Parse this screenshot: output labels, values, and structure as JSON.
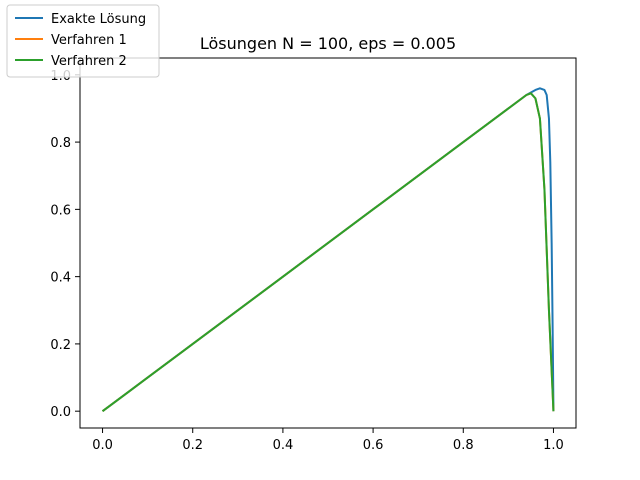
{
  "chart_data": {
    "type": "line",
    "title": "Lösungen N = 100, eps = 0.005",
    "xlabel": "",
    "ylabel": "",
    "xlim": [
      -0.05,
      1.05
    ],
    "ylim": [
      -0.05,
      1.05
    ],
    "xticks": [
      0.0,
      0.2,
      0.4,
      0.6,
      0.8,
      1.0
    ],
    "yticks": [
      0.0,
      0.2,
      0.4,
      0.6,
      0.8,
      1.0
    ],
    "xtick_labels": [
      "0.0",
      "0.2",
      "0.4",
      "0.6",
      "0.8",
      "1.0"
    ],
    "ytick_labels": [
      "0.0",
      "0.2",
      "0.4",
      "0.6",
      "0.8",
      "1.0"
    ],
    "grid": false,
    "legend_placement": "top-left",
    "series": [
      {
        "name": "Exakte Lösung",
        "color": "#1f77b4",
        "x": [
          0.0,
          0.2,
          0.4,
          0.6,
          0.8,
          0.9,
          0.94,
          0.96,
          0.97,
          0.98,
          0.985,
          0.99,
          0.993,
          0.996,
          0.998,
          1.0
        ],
        "y": [
          0.0,
          0.2,
          0.4,
          0.6,
          0.8,
          0.9,
          0.94,
          0.955,
          0.96,
          0.955,
          0.94,
          0.87,
          0.74,
          0.5,
          0.27,
          0.0
        ]
      },
      {
        "name": "Verfahren 1",
        "color": "#ff7f0e",
        "x": [
          0.0,
          0.2,
          0.4,
          0.6,
          0.8,
          0.9,
          0.94,
          0.95,
          0.96,
          0.97,
          0.98,
          0.99,
          1.0
        ],
        "y": [
          0.0,
          0.2,
          0.4,
          0.6,
          0.8,
          0.9,
          0.94,
          0.945,
          0.93,
          0.87,
          0.66,
          0.3,
          0.0
        ]
      },
      {
        "name": "Verfahren 2",
        "color": "#2ca02c",
        "x": [
          0.0,
          0.2,
          0.4,
          0.6,
          0.8,
          0.9,
          0.94,
          0.95,
          0.96,
          0.97,
          0.98,
          0.99,
          1.0
        ],
        "y": [
          0.0,
          0.2,
          0.4,
          0.6,
          0.8,
          0.9,
          0.94,
          0.945,
          0.93,
          0.87,
          0.66,
          0.3,
          0.0
        ]
      }
    ]
  }
}
